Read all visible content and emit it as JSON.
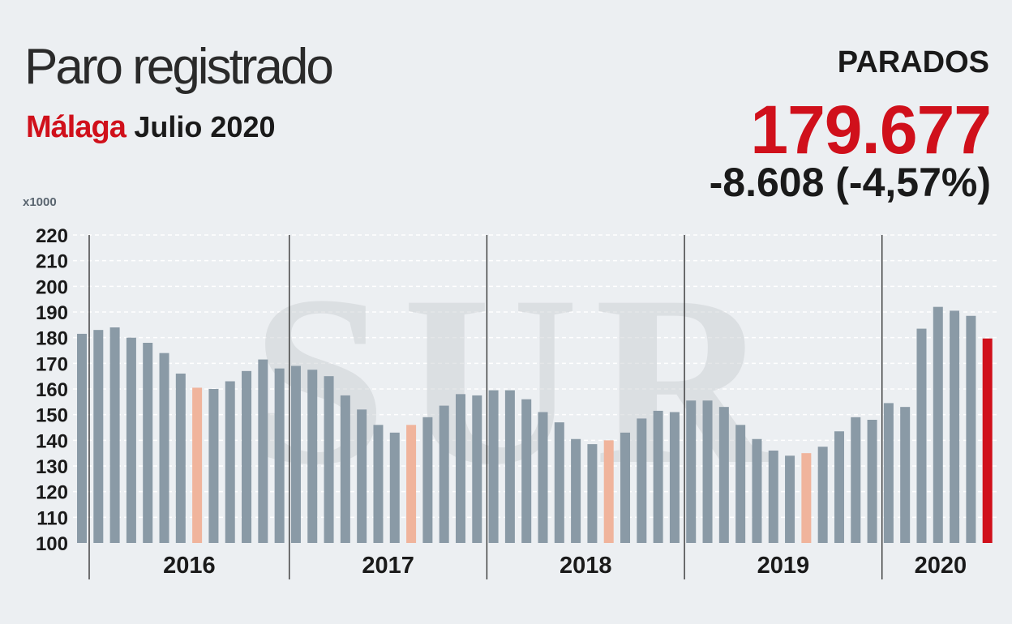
{
  "header": {
    "title": "Paro registrado",
    "place": "Málaga",
    "date": "Julio 2020"
  },
  "kpi": {
    "label": "PARADOS",
    "value": "179.677",
    "change": "-8.608 (-4,57%)"
  },
  "watermark": "SUR",
  "colors": {
    "bar": "#8a9aa6",
    "highlight_month": "#f0b49c",
    "current": "#d0101b",
    "grid": "#ffffff",
    "unit_label": "#5a6570"
  },
  "chart_data": {
    "type": "bar",
    "unit_label": "x1000",
    "ylim": [
      100,
      220
    ],
    "y_ticks": [
      100,
      110,
      120,
      130,
      140,
      150,
      160,
      170,
      180,
      190,
      200,
      210,
      220
    ],
    "grid": true,
    "years": [
      {
        "label": "2016",
        "values": [
          181.5,
          183.0,
          184.0,
          180.0,
          178.0,
          174.0,
          166.0,
          160.5,
          160.0,
          163.0,
          167.0,
          171.5,
          168.0
        ]
      },
      {
        "label": "2017",
        "values": [
          169.0,
          167.5,
          165.0,
          157.5,
          152.0,
          146.0,
          143.0,
          146.0,
          149.0,
          153.5,
          158.0,
          157.5
        ]
      },
      {
        "label": "2018",
        "values": [
          159.5,
          159.5,
          156.0,
          151.0,
          147.0,
          140.5,
          138.5,
          140.0,
          143.0,
          148.5,
          151.5,
          151.0
        ]
      },
      {
        "label": "2019",
        "values": [
          155.5,
          155.5,
          153.0,
          146.0,
          140.5,
          136.0,
          134.0,
          135.0,
          137.5,
          143.5,
          149.0,
          148.0
        ]
      },
      {
        "label": "2020",
        "values": [
          154.5,
          153.0,
          183.5,
          192.0,
          190.5,
          188.5,
          179.677
        ]
      }
    ],
    "highlight_index_in_year": 7,
    "highlight_years": [
      "2016",
      "2017",
      "2018",
      "2019"
    ],
    "current_label": "2020"
  }
}
